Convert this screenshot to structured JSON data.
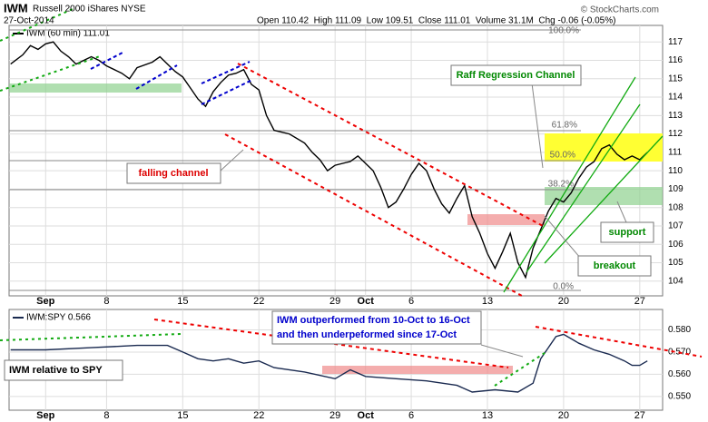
{
  "header": {
    "symbol": "IWM",
    "name": "Russell 2000 iShares NYSE",
    "date": "27-Oct-2014",
    "quote": "Open 110.42  High 111.09  Low 109.51  Close 111.01  Volume 31.1M  Chg -0.06 (-0.05%)",
    "credit": "© StockCharts.com"
  },
  "annotations": {
    "raff": "Raff Regression Channel",
    "falling": "falling channel",
    "support": "support",
    "breakout": "breakout",
    "relative": "IWM relative to SPY",
    "note1": "IWM outperformed from 10-Oct to 16-Oct",
    "note2": "and then underpeformed since 17-Oct",
    "fib": [
      "100.0%",
      "61.8%",
      "50.0%",
      "38.2%",
      "0.0%"
    ]
  },
  "chart_data": [
    {
      "type": "line",
      "legend": "IWM (60 min) 111.01",
      "color": "#000000",
      "x": [
        -2.3,
        -1.5,
        -1,
        -0.5,
        0,
        0.5,
        1,
        1.5,
        2,
        3,
        3.5,
        4,
        5,
        5.5,
        6,
        7,
        7.5,
        8,
        8.5,
        9,
        9.5,
        10,
        10.5,
        11,
        11.5,
        12,
        12.5,
        13,
        13.5,
        14,
        14.5,
        15,
        16,
        17,
        17.5,
        18,
        18.5,
        19,
        20,
        20.5,
        21,
        21.5,
        22,
        22.5,
        23,
        23.5,
        24,
        24.5,
        25,
        25.5,
        26,
        26.5,
        27,
        27.5,
        28,
        28.5,
        29,
        29.5,
        30,
        30.5,
        31,
        31.5,
        32,
        32.5,
        33,
        33.5,
        34,
        34.5,
        35,
        35.5,
        36,
        36.5,
        37,
        37.5,
        38,
        38.5,
        39,
        39.5
      ],
      "values": [
        115.8,
        116.3,
        116.8,
        116.6,
        116.9,
        117.0,
        116.5,
        116.2,
        115.8,
        116.2,
        116.0,
        115.7,
        115.3,
        115.0,
        115.6,
        115.9,
        116.2,
        115.8,
        115.4,
        115.1,
        114.5,
        113.9,
        113.5,
        114.3,
        114.8,
        115.2,
        115.3,
        115.5,
        114.7,
        114.4,
        113.0,
        112.2,
        112.0,
        111.5,
        111.0,
        110.6,
        110.0,
        110.3,
        110.5,
        110.8,
        110.4,
        110.0,
        109.1,
        108.0,
        108.3,
        109.0,
        109.8,
        110.4,
        110.0,
        109.0,
        108.2,
        107.7,
        108.5,
        109.2,
        107.5,
        106.6,
        105.5,
        104.7,
        105.6,
        106.6,
        105.0,
        104.2,
        105.8,
        106.8,
        107.8,
        108.5,
        108.3,
        108.8,
        109.6,
        110.2,
        110.5,
        111.2,
        111.4,
        110.9,
        110.6,
        110.8,
        110.6,
        111.0
      ],
      "xlim": [
        -2.4,
        40.5
      ],
      "xticks": [
        {
          "value": 0,
          "label": "Sep"
        },
        {
          "value": 4,
          "label": "8"
        },
        {
          "value": 9,
          "label": "15"
        },
        {
          "value": 14,
          "label": "22"
        },
        {
          "value": 19,
          "label": "29"
        },
        {
          "value": 21,
          "label": "Oct"
        },
        {
          "value": 24,
          "label": "6"
        },
        {
          "value": 29,
          "label": "13"
        },
        {
          "value": 34,
          "label": "20"
        },
        {
          "value": 39,
          "label": "27"
        }
      ],
      "ylim": [
        103.2,
        117.9
      ],
      "yticks": [
        104,
        105,
        106,
        107,
        108,
        109,
        110,
        111,
        112,
        113,
        114,
        115,
        116,
        117
      ],
      "grid": true
    },
    {
      "type": "line",
      "legend": "IWM:SPY 0.566",
      "color": "#1a2a50",
      "x": [
        -2.3,
        0,
        3,
        6,
        8,
        9,
        10,
        11,
        12,
        13,
        14,
        15,
        17,
        19,
        20,
        21,
        23,
        25,
        27,
        28,
        29.5,
        31,
        32,
        32.5,
        33,
        33.5,
        34,
        35,
        36,
        37,
        38,
        38.5,
        39,
        39.5
      ],
      "values": [
        0.571,
        0.571,
        0.572,
        0.573,
        0.573,
        0.57,
        0.567,
        0.566,
        0.567,
        0.565,
        0.566,
        0.563,
        0.561,
        0.558,
        0.562,
        0.559,
        0.558,
        0.557,
        0.555,
        0.552,
        0.553,
        0.552,
        0.556,
        0.567,
        0.572,
        0.577,
        0.578,
        0.574,
        0.571,
        0.569,
        0.566,
        0.564,
        0.564,
        0.566
      ],
      "xlim": [
        -2.4,
        40.5
      ],
      "xticks": [
        {
          "value": 0,
          "label": "Sep"
        },
        {
          "value": 4,
          "label": "8"
        },
        {
          "value": 9,
          "label": "15"
        },
        {
          "value": 14,
          "label": "22"
        },
        {
          "value": 19,
          "label": "29"
        },
        {
          "value": 21,
          "label": "Oct"
        },
        {
          "value": 24,
          "label": "6"
        },
        {
          "value": 29,
          "label": "13"
        },
        {
          "value": 34,
          "label": "20"
        },
        {
          "value": 39,
          "label": "27"
        }
      ],
      "ylim": [
        0.5438,
        0.5892
      ],
      "yticks": [
        {
          "value": 0.55,
          "label": "0.550"
        },
        {
          "value": 0.56,
          "label": "0.560"
        },
        {
          "value": 0.57,
          "label": "0.570"
        },
        {
          "value": 0.58,
          "label": "0.580"
        }
      ],
      "grid": true
    }
  ]
}
